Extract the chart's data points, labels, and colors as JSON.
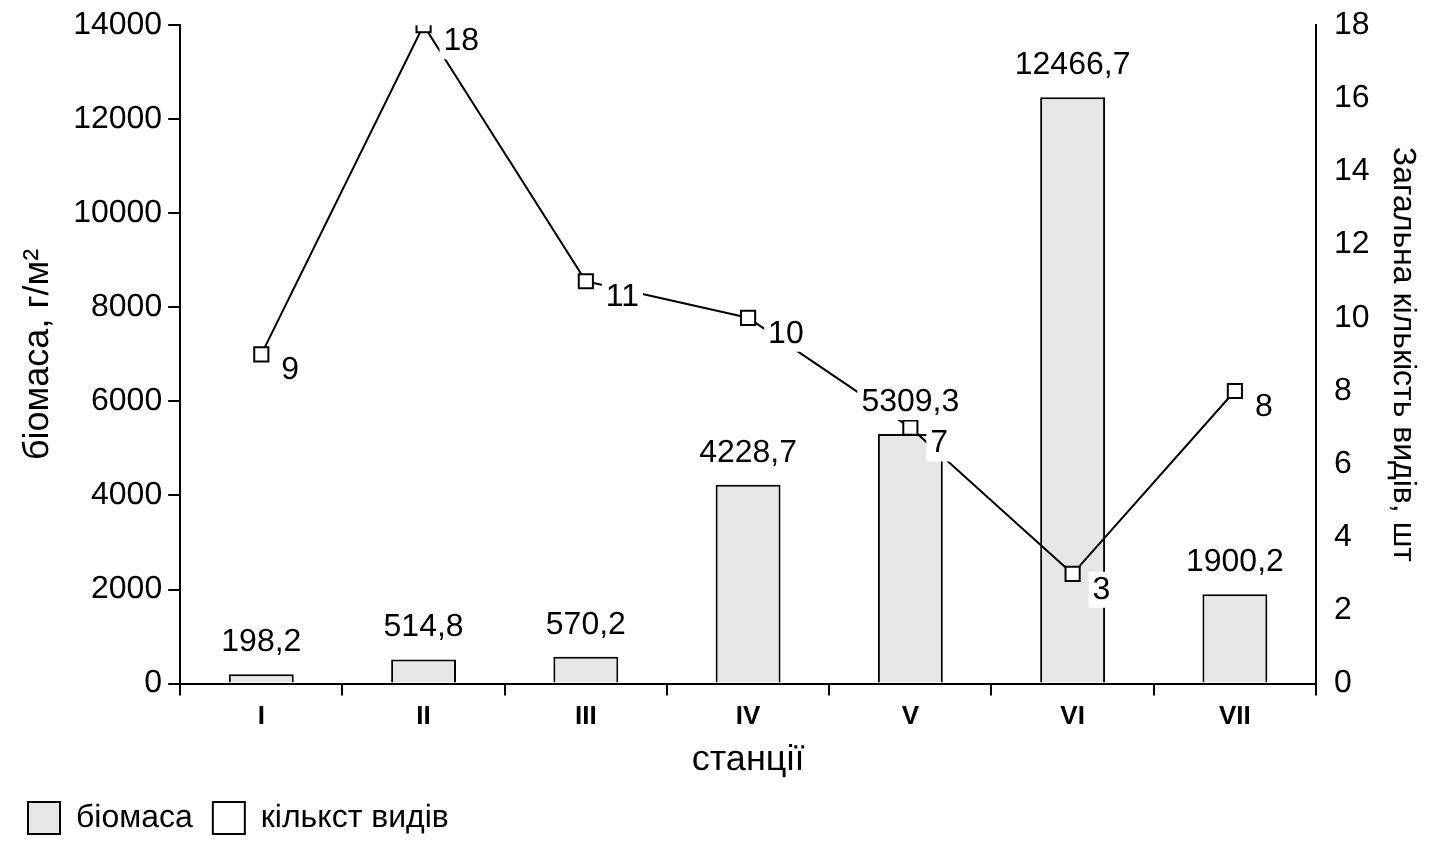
{
  "chart_data": {
    "type": "bar",
    "categories": [
      "I",
      "II",
      "III",
      "IV",
      "V",
      "VI",
      "VII"
    ],
    "xlabel": "станції",
    "ylabel": "біомаса, г/м²",
    "y2label": "Загальна кількість видів, шт",
    "ylim": [
      0,
      14000
    ],
    "yticks": [
      0,
      2000,
      4000,
      6000,
      8000,
      10000,
      12000,
      14000
    ],
    "y2lim": [
      0,
      18
    ],
    "y2ticks": [
      0,
      2,
      4,
      6,
      8,
      10,
      12,
      14,
      16,
      18
    ],
    "legend": "bottom left",
    "grid": false,
    "series": [
      {
        "name": "біомаса",
        "color": "#e6e6e6",
        "values": [
          198.2,
          514.8,
          570.2,
          4228.7,
          5309.3,
          12466.7,
          1900.2
        ],
        "value_labels": [
          "198,2",
          "514,8",
          "570,2",
          "4228,7",
          "5309,3",
          "12466,7",
          "1900,2"
        ]
      },
      {
        "type": "line",
        "name": "кількст видів",
        "color": "#000000",
        "axis": "y2",
        "marker": "square",
        "values": [
          9,
          18,
          11,
          10,
          7,
          3,
          8
        ],
        "value_labels": [
          "9",
          "18",
          "11",
          "10",
          "7",
          "3",
          "8"
        ]
      }
    ]
  }
}
